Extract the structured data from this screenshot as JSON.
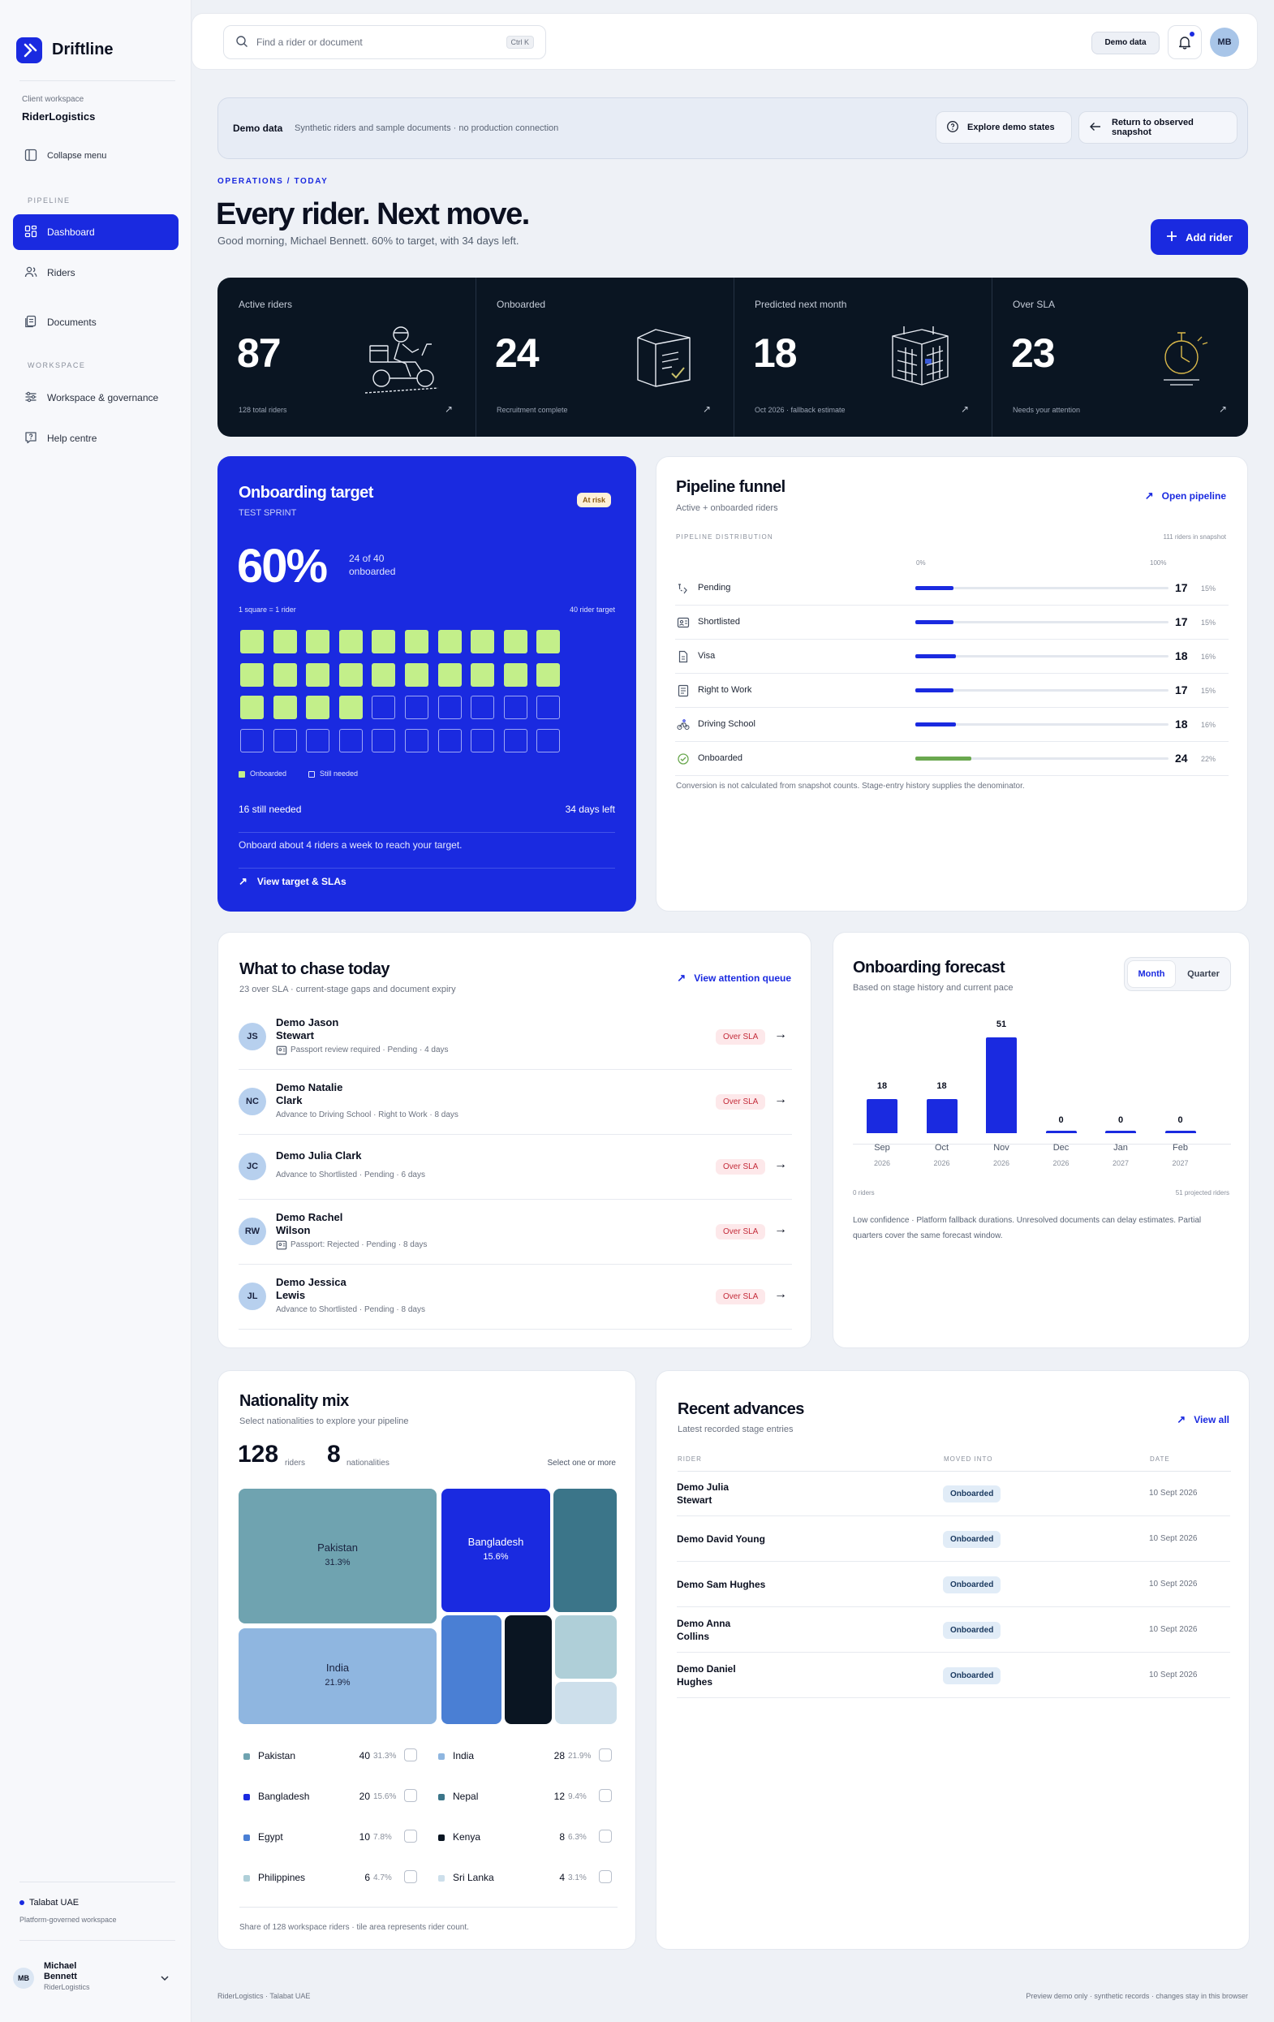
{
  "app": {
    "name": "Driftline"
  },
  "sidebar": {
    "client_label": "Client workspace",
    "client_name": "RiderLogistics",
    "collapse": "Collapse menu",
    "pipeline_section": "PIPELINE",
    "items": [
      {
        "label": "Dashboard",
        "icon": "grid-icon",
        "active": true
      },
      {
        "label": "Riders",
        "icon": "users-icon"
      },
      {
        "label": "Documents",
        "icon": "documents-icon"
      }
    ],
    "workspace_section": "WORKSPACE",
    "workspace_items": [
      {
        "label": "Workspace & governance",
        "icon": "sliders-icon"
      },
      {
        "label": "Help centre",
        "icon": "help-icon"
      }
    ],
    "workspace_name": "Talabat UAE",
    "workspace_sub": "Platform-governed workspace",
    "user": {
      "initials": "MB",
      "first": "Michael",
      "last": "Bennett",
      "org": "RiderLogistics"
    }
  },
  "topbar": {
    "search_placeholder": "Find a rider or document",
    "shortcut": "Ctrl K",
    "demo_pill": "Demo data",
    "avatar": "MB"
  },
  "banner": {
    "title": "Demo data",
    "text": "Synthetic riders and sample documents · no production connection",
    "explore": "Explore demo states",
    "return": "Return to observed snapshot"
  },
  "hero": {
    "eyebrow": "OPERATIONS / TODAY",
    "title": "Every rider. Next move.",
    "subtitle": "Good morning, Michael Bennett. 60% to target, with 34 days left.",
    "add_rider": "Add rider"
  },
  "kpis": [
    {
      "label": "Active riders",
      "value": "87",
      "sub": "128 total riders"
    },
    {
      "label": "Onboarded",
      "value": "24",
      "sub": "Recruitment complete"
    },
    {
      "label": "Predicted next month",
      "value": "18",
      "sub": "Oct 2026 · fallback estimate"
    },
    {
      "label": "Over SLA",
      "value": "23",
      "sub": "Needs your attention"
    }
  ],
  "target": {
    "title": "Onboarding target",
    "subtitle": "TEST SPRINT",
    "badge": "At risk",
    "percent": "60%",
    "progress_text": "24 of 40 onboarded",
    "scale_left": "1 square = 1 rider",
    "scale_right": "40 rider target",
    "onboarded_count": 24,
    "target_total": 40,
    "legend_on": "Onboarded",
    "legend_off": "Still needed",
    "still_needed": "16 still needed",
    "days_left": "34 days left",
    "advice": "Onboard about 4 riders a week to reach your target.",
    "link": "View target & SLAs"
  },
  "funnel": {
    "title": "Pipeline funnel",
    "subtitle": "Active + onboarded riders",
    "link": "Open pipeline",
    "dist_label": "PIPELINE DISTRIBUTION",
    "dist_right": "111 riders in snapshot",
    "axis_min": "0%",
    "axis_max": "100%",
    "rows": [
      {
        "label": "Pending",
        "value": "17",
        "pct": "15%",
        "fraction": 0.15,
        "icon": "pending-icon"
      },
      {
        "label": "Shortlisted",
        "value": "17",
        "pct": "15%",
        "fraction": 0.15,
        "icon": "id-card-icon"
      },
      {
        "label": "Visa",
        "value": "18",
        "pct": "16%",
        "fraction": 0.16,
        "icon": "document-icon"
      },
      {
        "label": "Right to Work",
        "value": "17",
        "pct": "15%",
        "fraction": 0.15,
        "icon": "checklist-icon"
      },
      {
        "label": "Driving School",
        "value": "18",
        "pct": "16%",
        "fraction": 0.16,
        "icon": "bike-icon"
      },
      {
        "label": "Onboarded",
        "value": "24",
        "pct": "22%",
        "fraction": 0.22,
        "icon": "check-circle-icon"
      }
    ],
    "note": "Conversion is not calculated from snapshot counts. Stage-entry history supplies the denominator."
  },
  "chase": {
    "title": "What to chase today",
    "subtitle": "23 over SLA · current-stage gaps and document expiry",
    "link": "View attention queue",
    "rows": [
      {
        "initials": "JS",
        "name": "Demo Jason Stewart",
        "sub": "Passport review required · Pending · 4 days",
        "badge": "Over SLA",
        "doc": true
      },
      {
        "initials": "NC",
        "name": "Demo Natalie Clark",
        "sub": "Advance to Driving School · Right to Work · 8 days",
        "badge": "Over SLA",
        "doc": false
      },
      {
        "initials": "JC",
        "name": "Demo Julia Clark",
        "sub": "Advance to Shortlisted · Pending · 6 days",
        "badge": "Over SLA",
        "doc": false
      },
      {
        "initials": "RW",
        "name": "Demo Rachel Wilson",
        "sub": "Passport: Rejected · Pending · 8 days",
        "badge": "Over SLA",
        "doc": true
      },
      {
        "initials": "JL",
        "name": "Demo Jessica Lewis",
        "sub": "Advance to Shortlisted · Pending · 8 days",
        "badge": "Over SLA",
        "doc": false
      }
    ]
  },
  "forecast": {
    "title": "Onboarding forecast",
    "subtitle": "Based on stage history and current pace",
    "toggle": [
      "Month",
      "Quarter"
    ],
    "axis_left": "0 riders",
    "axis_right": "51 projected riders",
    "note": "Low confidence · Platform fallback durations. Unresolved documents can delay estimates. Partial quarters cover the same forecast window."
  },
  "chart_data": {
    "type": "bar",
    "categories": [
      "Sep 2026",
      "Oct 2026",
      "Nov 2026",
      "Dec 2026",
      "Jan 2027",
      "Feb 2027"
    ],
    "months": [
      "Sep",
      "Oct",
      "Nov",
      "Dec",
      "Jan",
      "Feb"
    ],
    "years": [
      "2026",
      "2026",
      "2026",
      "2026",
      "2027",
      "2027"
    ],
    "values": [
      18,
      18,
      51,
      0,
      0,
      0
    ],
    "ylim": [
      0,
      51
    ]
  },
  "nationality": {
    "title": "Nationality mix",
    "subtitle": "Select nationalities to explore your pipeline",
    "riders": "128",
    "riders_label": "riders",
    "nationalities": "8",
    "nationalities_label": "nationalities",
    "select_hint": "Select one or more",
    "items": [
      {
        "name": "Pakistan",
        "count": "40",
        "pct": "31.3%",
        "color": "#6fa3b0"
      },
      {
        "name": "India",
        "count": "28",
        "pct": "21.9%",
        "color": "#8fb6e0"
      },
      {
        "name": "Bangladesh",
        "count": "20",
        "pct": "15.6%",
        "color": "#1a2ae0"
      },
      {
        "name": "Nepal",
        "count": "12",
        "pct": "9.4%",
        "color": "#3b7589"
      },
      {
        "name": "Egypt",
        "count": "10",
        "pct": "7.8%",
        "color": "#4a7fd4"
      },
      {
        "name": "Kenya",
        "count": "8",
        "pct": "6.3%",
        "color": "#0a1522"
      },
      {
        "name": "Philippines",
        "count": "6",
        "pct": "4.7%",
        "color": "#afcfd8"
      },
      {
        "name": "Sri Lanka",
        "count": "4",
        "pct": "3.1%",
        "color": "#cddfeb"
      }
    ],
    "note": "Share of 128 workspace riders · tile area represents rider count."
  },
  "recent": {
    "title": "Recent advances",
    "subtitle": "Latest recorded stage entries",
    "link": "View all",
    "col_rider": "RIDER",
    "col_moved": "MOVED INTO",
    "col_date": "DATE",
    "rows": [
      {
        "name": "Demo Julia Stewart",
        "stage": "Onboarded",
        "date": "10 Sept 2026"
      },
      {
        "name": "Demo David Young",
        "stage": "Onboarded",
        "date": "10 Sept 2026"
      },
      {
        "name": "Demo Sam Hughes",
        "stage": "Onboarded",
        "date": "10 Sept 2026"
      },
      {
        "name": "Demo Anna Collins",
        "stage": "Onboarded",
        "date": "10 Sept 2026"
      },
      {
        "name": "Demo Daniel Hughes",
        "stage": "Onboarded",
        "date": "10 Sept 2026"
      }
    ]
  },
  "footer": {
    "left": "RiderLogistics · Talabat UAE",
    "right": "Preview demo only · synthetic records · changes stay in this browser"
  },
  "colors": {
    "accent": "#1a2ae0",
    "dark": "#0a1522",
    "lime": "#c3ef8a",
    "danger": "#c42b3a"
  }
}
